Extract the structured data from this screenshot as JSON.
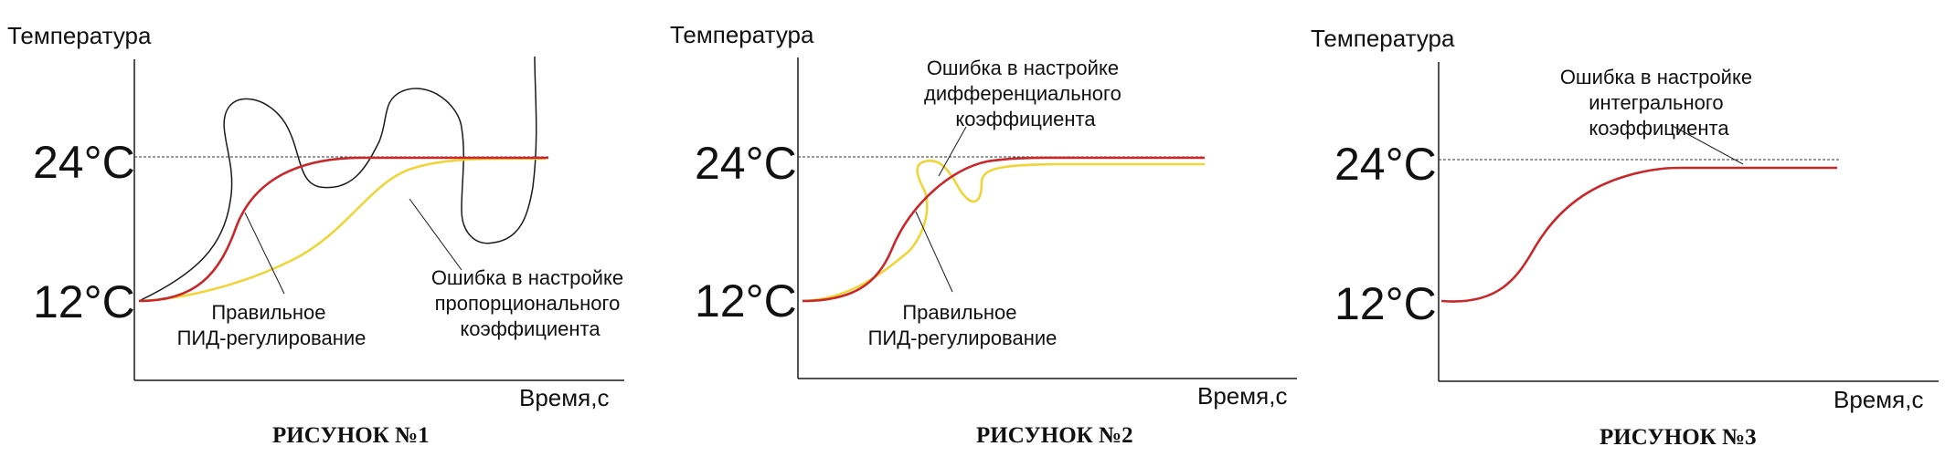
{
  "colors": {
    "correct_pid": "#c8282a",
    "error_curve": "#efd53a",
    "outline_curve": "#1a1a1a",
    "axis": "#1a1a1a",
    "reference_line": "#333333"
  },
  "figures": [
    {
      "ylabel": "Температура",
      "ticks": {
        "high": "24°C",
        "low": "12°C"
      },
      "xlabel": "Время,с",
      "caption": "РИСУНОК №1",
      "annotations": {
        "correct": [
          "Правильное",
          "ПИД-регулирование"
        ],
        "error": [
          "Ошибка в настройке",
          "пропорционального",
          "коэффициента"
        ]
      }
    },
    {
      "ylabel": "Температура",
      "ticks": {
        "high": "24°C",
        "low": "12°C"
      },
      "xlabel": "Время,с",
      "caption": "РИСУНОК №2",
      "annotations": {
        "correct": [
          "Правильное",
          "ПИД-регулирование"
        ],
        "error": [
          "Ошибка в настройке",
          "дифференциального",
          "коэффициента"
        ]
      }
    },
    {
      "ylabel": "Температура",
      "ticks": {
        "high": "24°C",
        "low": "12°C"
      },
      "xlabel": "Время,с",
      "caption": "РИСУНОК №3",
      "annotations": {
        "error": [
          "Ошибка в настройке",
          "интегрального",
          "коэффициента"
        ]
      }
    }
  ]
}
